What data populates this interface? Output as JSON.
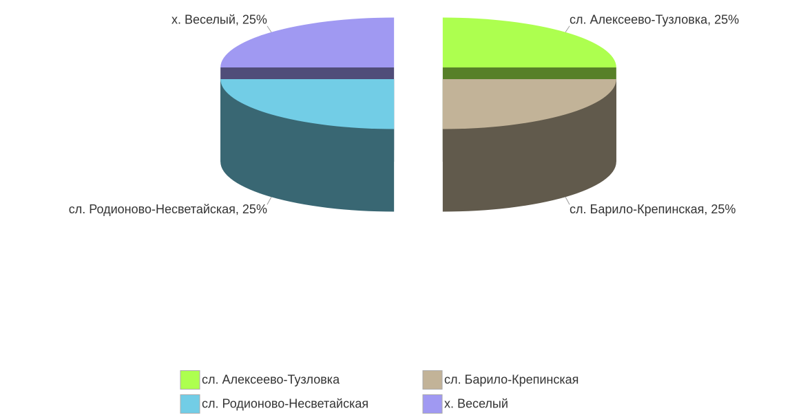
{
  "chart_data": {
    "type": "pie",
    "style": "3d",
    "exploded": true,
    "categories": [
      "сл. Алексеево-Тузловка",
      "сл. Барило-Крепинская",
      "сл. Родионово-Несветайская",
      "х. Веселый"
    ],
    "values": [
      25,
      25,
      25,
      25
    ],
    "value_labels": [
      "сл. Алексеево-Тузловка, 25%",
      "сл. Барило-Крепинская, 25%",
      "сл. Родионово-Несветайская, 25%",
      "х. Веселый, 25%"
    ],
    "colors": [
      "#adff4f",
      "#c2b398",
      "#72cde6",
      "#a099f2"
    ],
    "legend": "bottom"
  }
}
